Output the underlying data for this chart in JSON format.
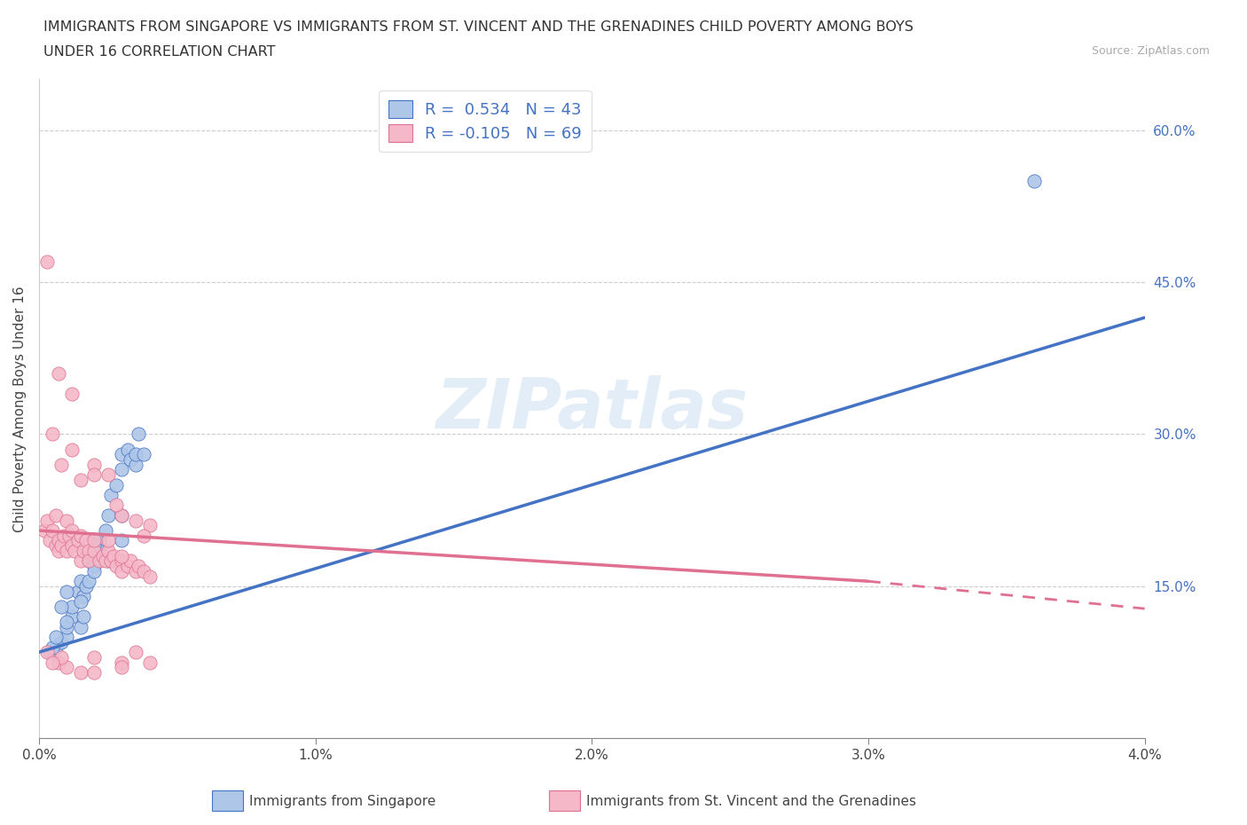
{
  "title_line1": "IMMIGRANTS FROM SINGAPORE VS IMMIGRANTS FROM ST. VINCENT AND THE GRENADINES CHILD POVERTY AMONG BOYS",
  "title_line2": "UNDER 16 CORRELATION CHART",
  "source": "Source: ZipAtlas.com",
  "ylabel": "Child Poverty Among Boys Under 16",
  "xlim": [
    0.0,
    0.04
  ],
  "ylim": [
    0.0,
    0.65
  ],
  "xticks": [
    0.0,
    0.01,
    0.02,
    0.03,
    0.04
  ],
  "xtick_labels": [
    "0.0%",
    "1.0%",
    "2.0%",
    "3.0%",
    "4.0%"
  ],
  "yticks": [
    0.0,
    0.15,
    0.3,
    0.45,
    0.6
  ],
  "ytick_labels": [
    "",
    "15.0%",
    "30.0%",
    "45.0%",
    "60.0%"
  ],
  "legend1_label": "R =  0.534   N = 43",
  "legend2_label": "R = -0.105   N = 69",
  "series1_color": "#aec6e8",
  "series2_color": "#f4b8c8",
  "trend1_color": "#4472c4",
  "trend2_color": "#e07090",
  "ytick_color": "#4472c4",
  "watermark": "ZIPatlas",
  "bottom_label1": "Immigrants from Singapore",
  "bottom_label2": "Immigrants from St. Vincent and the Grenadines",
  "trend1_x0": 0.0,
  "trend1_y0": 0.085,
  "trend1_x1": 0.04,
  "trend1_y1": 0.415,
  "trend2_x0": 0.0,
  "trend2_y0": 0.205,
  "trend2_x1": 0.03,
  "trend2_y1": 0.155,
  "trend2_dash_x0": 0.03,
  "trend2_dash_y0": 0.155,
  "trend2_dash_x1": 0.04,
  "trend2_dash_y1": 0.128,
  "singapore_x": [
    0.0004,
    0.0006,
    0.0008,
    0.001,
    0.001,
    0.0012,
    0.0012,
    0.0014,
    0.0015,
    0.0015,
    0.0016,
    0.0016,
    0.0017,
    0.0018,
    0.0018,
    0.002,
    0.002,
    0.0022,
    0.0022,
    0.0024,
    0.0025,
    0.0026,
    0.0028,
    0.003,
    0.003,
    0.0032,
    0.0033,
    0.0035,
    0.0035,
    0.0036,
    0.0038,
    0.003,
    0.002,
    0.001,
    0.0008,
    0.0005,
    0.003,
    0.0025,
    0.002,
    0.0015,
    0.001,
    0.0006,
    0.036
  ],
  "singapore_y": [
    0.085,
    0.09,
    0.095,
    0.1,
    0.11,
    0.12,
    0.13,
    0.145,
    0.11,
    0.155,
    0.14,
    0.12,
    0.15,
    0.175,
    0.155,
    0.19,
    0.17,
    0.195,
    0.185,
    0.205,
    0.22,
    0.24,
    0.25,
    0.265,
    0.28,
    0.285,
    0.275,
    0.27,
    0.28,
    0.3,
    0.28,
    0.22,
    0.19,
    0.145,
    0.13,
    0.09,
    0.195,
    0.175,
    0.165,
    0.135,
    0.115,
    0.1,
    0.55
  ],
  "stvincent_x": [
    0.0002,
    0.0003,
    0.0004,
    0.0005,
    0.0006,
    0.0006,
    0.0007,
    0.0007,
    0.0008,
    0.0009,
    0.001,
    0.001,
    0.0011,
    0.0012,
    0.0012,
    0.0013,
    0.0014,
    0.0015,
    0.0015,
    0.0016,
    0.0017,
    0.0018,
    0.0018,
    0.002,
    0.002,
    0.0022,
    0.0023,
    0.0024,
    0.0025,
    0.0026,
    0.0027,
    0.0028,
    0.003,
    0.003,
    0.0032,
    0.0033,
    0.0035,
    0.0036,
    0.0038,
    0.004,
    0.0005,
    0.0008,
    0.0012,
    0.0015,
    0.002,
    0.0025,
    0.003,
    0.0035,
    0.004,
    0.0003,
    0.0007,
    0.0012,
    0.002,
    0.0028,
    0.0038,
    0.0003,
    0.0007,
    0.001,
    0.0015,
    0.002,
    0.003,
    0.0035,
    0.004,
    0.003,
    0.0025,
    0.0008,
    0.003,
    0.002,
    0.0005
  ],
  "stvincent_y": [
    0.205,
    0.215,
    0.195,
    0.205,
    0.19,
    0.22,
    0.195,
    0.185,
    0.19,
    0.2,
    0.215,
    0.185,
    0.2,
    0.19,
    0.205,
    0.185,
    0.195,
    0.2,
    0.175,
    0.185,
    0.195,
    0.185,
    0.175,
    0.185,
    0.195,
    0.175,
    0.18,
    0.175,
    0.185,
    0.175,
    0.18,
    0.17,
    0.175,
    0.165,
    0.17,
    0.175,
    0.165,
    0.17,
    0.165,
    0.16,
    0.3,
    0.27,
    0.285,
    0.255,
    0.27,
    0.26,
    0.22,
    0.215,
    0.21,
    0.47,
    0.36,
    0.34,
    0.26,
    0.23,
    0.2,
    0.085,
    0.075,
    0.07,
    0.065,
    0.08,
    0.075,
    0.085,
    0.075,
    0.18,
    0.195,
    0.08,
    0.07,
    0.065,
    0.075
  ]
}
